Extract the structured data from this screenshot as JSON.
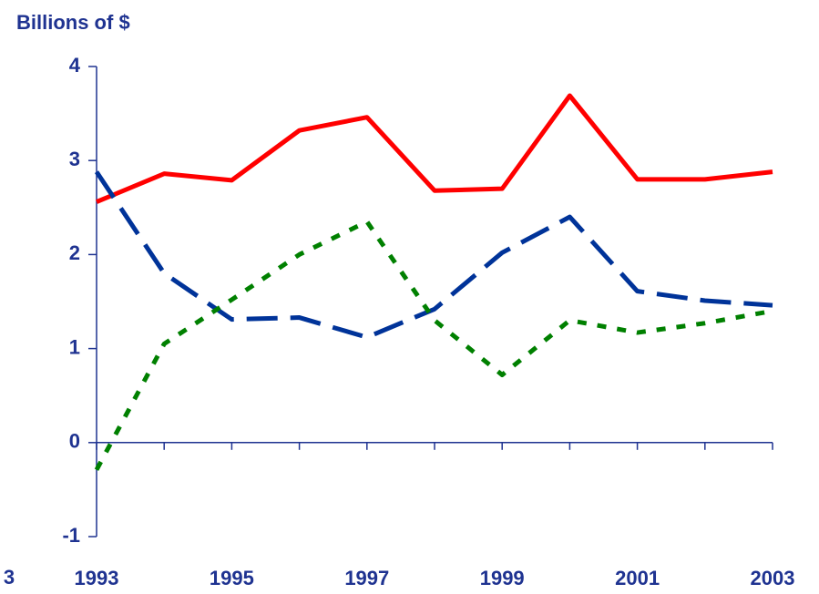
{
  "chart_data": {
    "type": "line",
    "title": "Billions of $",
    "annotation": "3",
    "x": [
      1993,
      1994,
      1995,
      1996,
      1997,
      1998,
      1999,
      2000,
      2001,
      2002,
      2003
    ],
    "xlim": [
      1993,
      2003
    ],
    "xticks": [
      1993,
      1995,
      1997,
      1999,
      2001,
      2003
    ],
    "ylim": [
      -1,
      4
    ],
    "yticks": [
      -1,
      0,
      1,
      2,
      3,
      4
    ],
    "series": [
      {
        "color": "#ff0000",
        "dash": "solid",
        "values": [
          2.56,
          2.86,
          2.79,
          3.32,
          3.46,
          2.68,
          2.7,
          3.69,
          2.8,
          2.8,
          2.88
        ]
      },
      {
        "color": "#003399",
        "dash": "dashed",
        "values": [
          2.88,
          1.8,
          1.31,
          1.33,
          1.12,
          1.42,
          2.02,
          2.4,
          1.61,
          1.51,
          1.46
        ]
      },
      {
        "color": "#008000",
        "dash": "dotted",
        "values": [
          -0.29,
          1.05,
          1.52,
          2.0,
          2.35,
          1.3,
          0.72,
          1.3,
          1.17,
          1.27,
          1.4
        ]
      }
    ]
  }
}
